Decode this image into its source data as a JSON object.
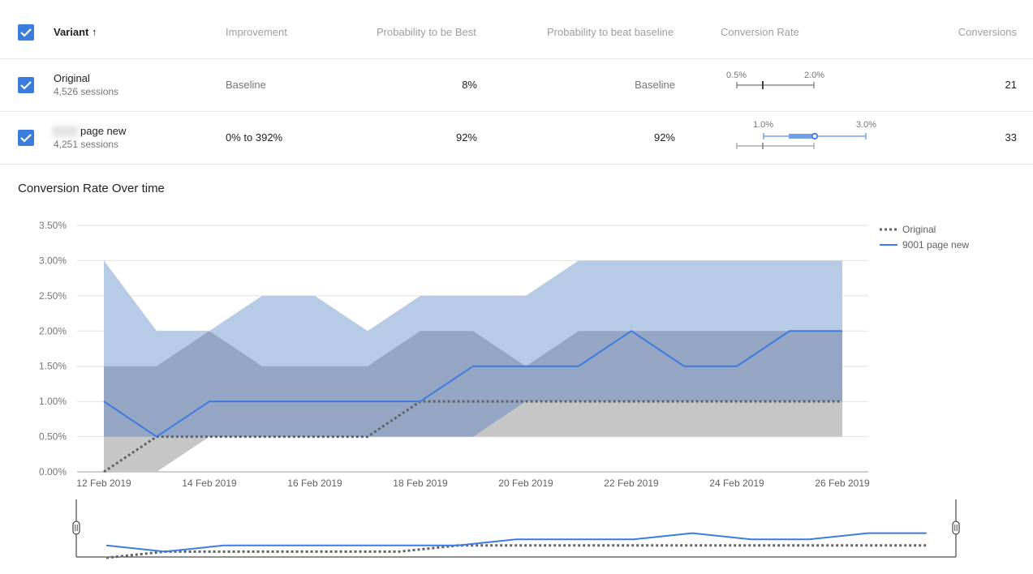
{
  "table": {
    "headers": {
      "variant": "Variant",
      "sort_arrow": "↑",
      "improvement": "Improvement",
      "prob_best": "Probability to be Best",
      "prob_beat": "Probability to beat baseline",
      "conv_rate": "Conversion Rate",
      "conversions": "Conversions"
    },
    "rows": [
      {
        "name": "Original",
        "sessions": "4,526 sessions",
        "improvement": "Baseline",
        "prob_best": "8%",
        "prob_beat": "Baseline",
        "ci_low_label": "0.5%",
        "ci_high_label": "2.0%",
        "conversions": "21"
      },
      {
        "name": "page new",
        "sessions": "4,251 sessions",
        "improvement": "0% to 392%",
        "prob_best": "92%",
        "prob_beat": "92%",
        "ci_low_label": "1.0%",
        "ci_high_label": "3.0%",
        "conversions": "33"
      }
    ]
  },
  "section_title": "Conversion Rate Over time",
  "colors": {
    "accent": "#3b7ddd",
    "original_band": "#c6c6c6",
    "new_band": "#b8cbe6",
    "overlap_band": "#94a6c4",
    "original_line": "#5f6368",
    "new_line": "#3d7be0"
  },
  "chart_data": {
    "type": "area",
    "x": [
      "12 Feb 2019",
      "13 Feb 2019",
      "14 Feb 2019",
      "15 Feb 2019",
      "16 Feb 2019",
      "17 Feb 2019",
      "18 Feb 2019",
      "19 Feb 2019",
      "20 Feb 2019",
      "21 Feb 2019",
      "22 Feb 2019",
      "23 Feb 2019",
      "24 Feb 2019",
      "25 Feb 2019",
      "26 Feb 2019"
    ],
    "x_tick_labels": [
      "12 Feb 2019",
      "14 Feb 2019",
      "16 Feb 2019",
      "18 Feb 2019",
      "20 Feb 2019",
      "22 Feb 2019",
      "24 Feb 2019",
      "26 Feb 2019"
    ],
    "y_tick_labels": [
      "0.00%",
      "0.50%",
      "1.00%",
      "1.50%",
      "2.00%",
      "2.50%",
      "3.00%",
      "3.50%"
    ],
    "ylim": [
      0,
      3.5
    ],
    "grid": true,
    "legend_position": "top-right",
    "series": [
      {
        "name": "Original",
        "style": "dotted",
        "values": [
          0,
          0.5,
          0.5,
          0.5,
          0.5,
          0.5,
          1.0,
          1.0,
          1.0,
          1.0,
          1.0,
          1.0,
          1.0,
          1.0,
          1.0
        ],
        "band_low": [
          0,
          0,
          0.5,
          0.5,
          0.5,
          0.5,
          0.5,
          0.5,
          0.5,
          0.5,
          0.5,
          0.5,
          0.5,
          0.5,
          0.5
        ],
        "band_high": [
          1.5,
          1.5,
          2.0,
          1.5,
          1.5,
          1.5,
          2.0,
          2.0,
          1.5,
          2.0,
          2.0,
          2.0,
          2.0,
          2.0,
          2.0
        ]
      },
      {
        "name": "9001 page new",
        "style": "solid",
        "values": [
          1.0,
          0.5,
          1.0,
          1.0,
          1.0,
          1.0,
          1.0,
          1.5,
          1.5,
          1.5,
          2.0,
          1.5,
          1.5,
          2.0,
          2.0
        ],
        "band_low": [
          0.5,
          0.5,
          0.5,
          0.5,
          0.5,
          0.5,
          0.5,
          0.5,
          1.0,
          1.0,
          1.0,
          1.0,
          1.0,
          1.0,
          1.0
        ],
        "band_high": [
          3.0,
          2.0,
          2.0,
          2.5,
          2.5,
          2.0,
          2.5,
          2.5,
          2.5,
          3.0,
          3.0,
          3.0,
          3.0,
          3.0,
          3.0
        ]
      }
    ]
  }
}
